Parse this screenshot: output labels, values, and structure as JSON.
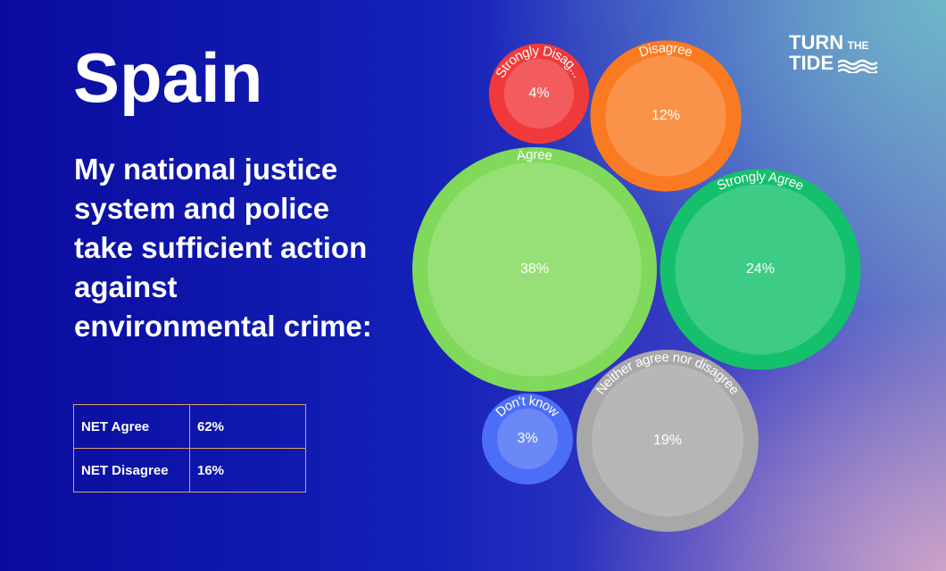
{
  "chart_data": {
    "type": "bubble",
    "title": "Spain",
    "subtitle": "My national justice system and police take sufficient action against environmental crime:",
    "categories": [
      "Strongly Disag...",
      "Disagree",
      "Agree",
      "Strongly Agree",
      "Don't know",
      "Neither agree nor disagree"
    ],
    "values": [
      4,
      12,
      38,
      24,
      3,
      19
    ],
    "value_labels": [
      "4%",
      "12%",
      "38%",
      "24%",
      "3%",
      "19%"
    ],
    "colors": [
      "#f0393b",
      "#fa7a22",
      "#80d95a",
      "#14c06b",
      "#4c6ef6",
      "#a8a8a8"
    ]
  },
  "table": {
    "rows": [
      [
        "NET Agree",
        "62%"
      ],
      [
        "NET Disagree",
        "16%"
      ]
    ]
  },
  "logo": [
    "TURN",
    "THE",
    "TIDE"
  ]
}
